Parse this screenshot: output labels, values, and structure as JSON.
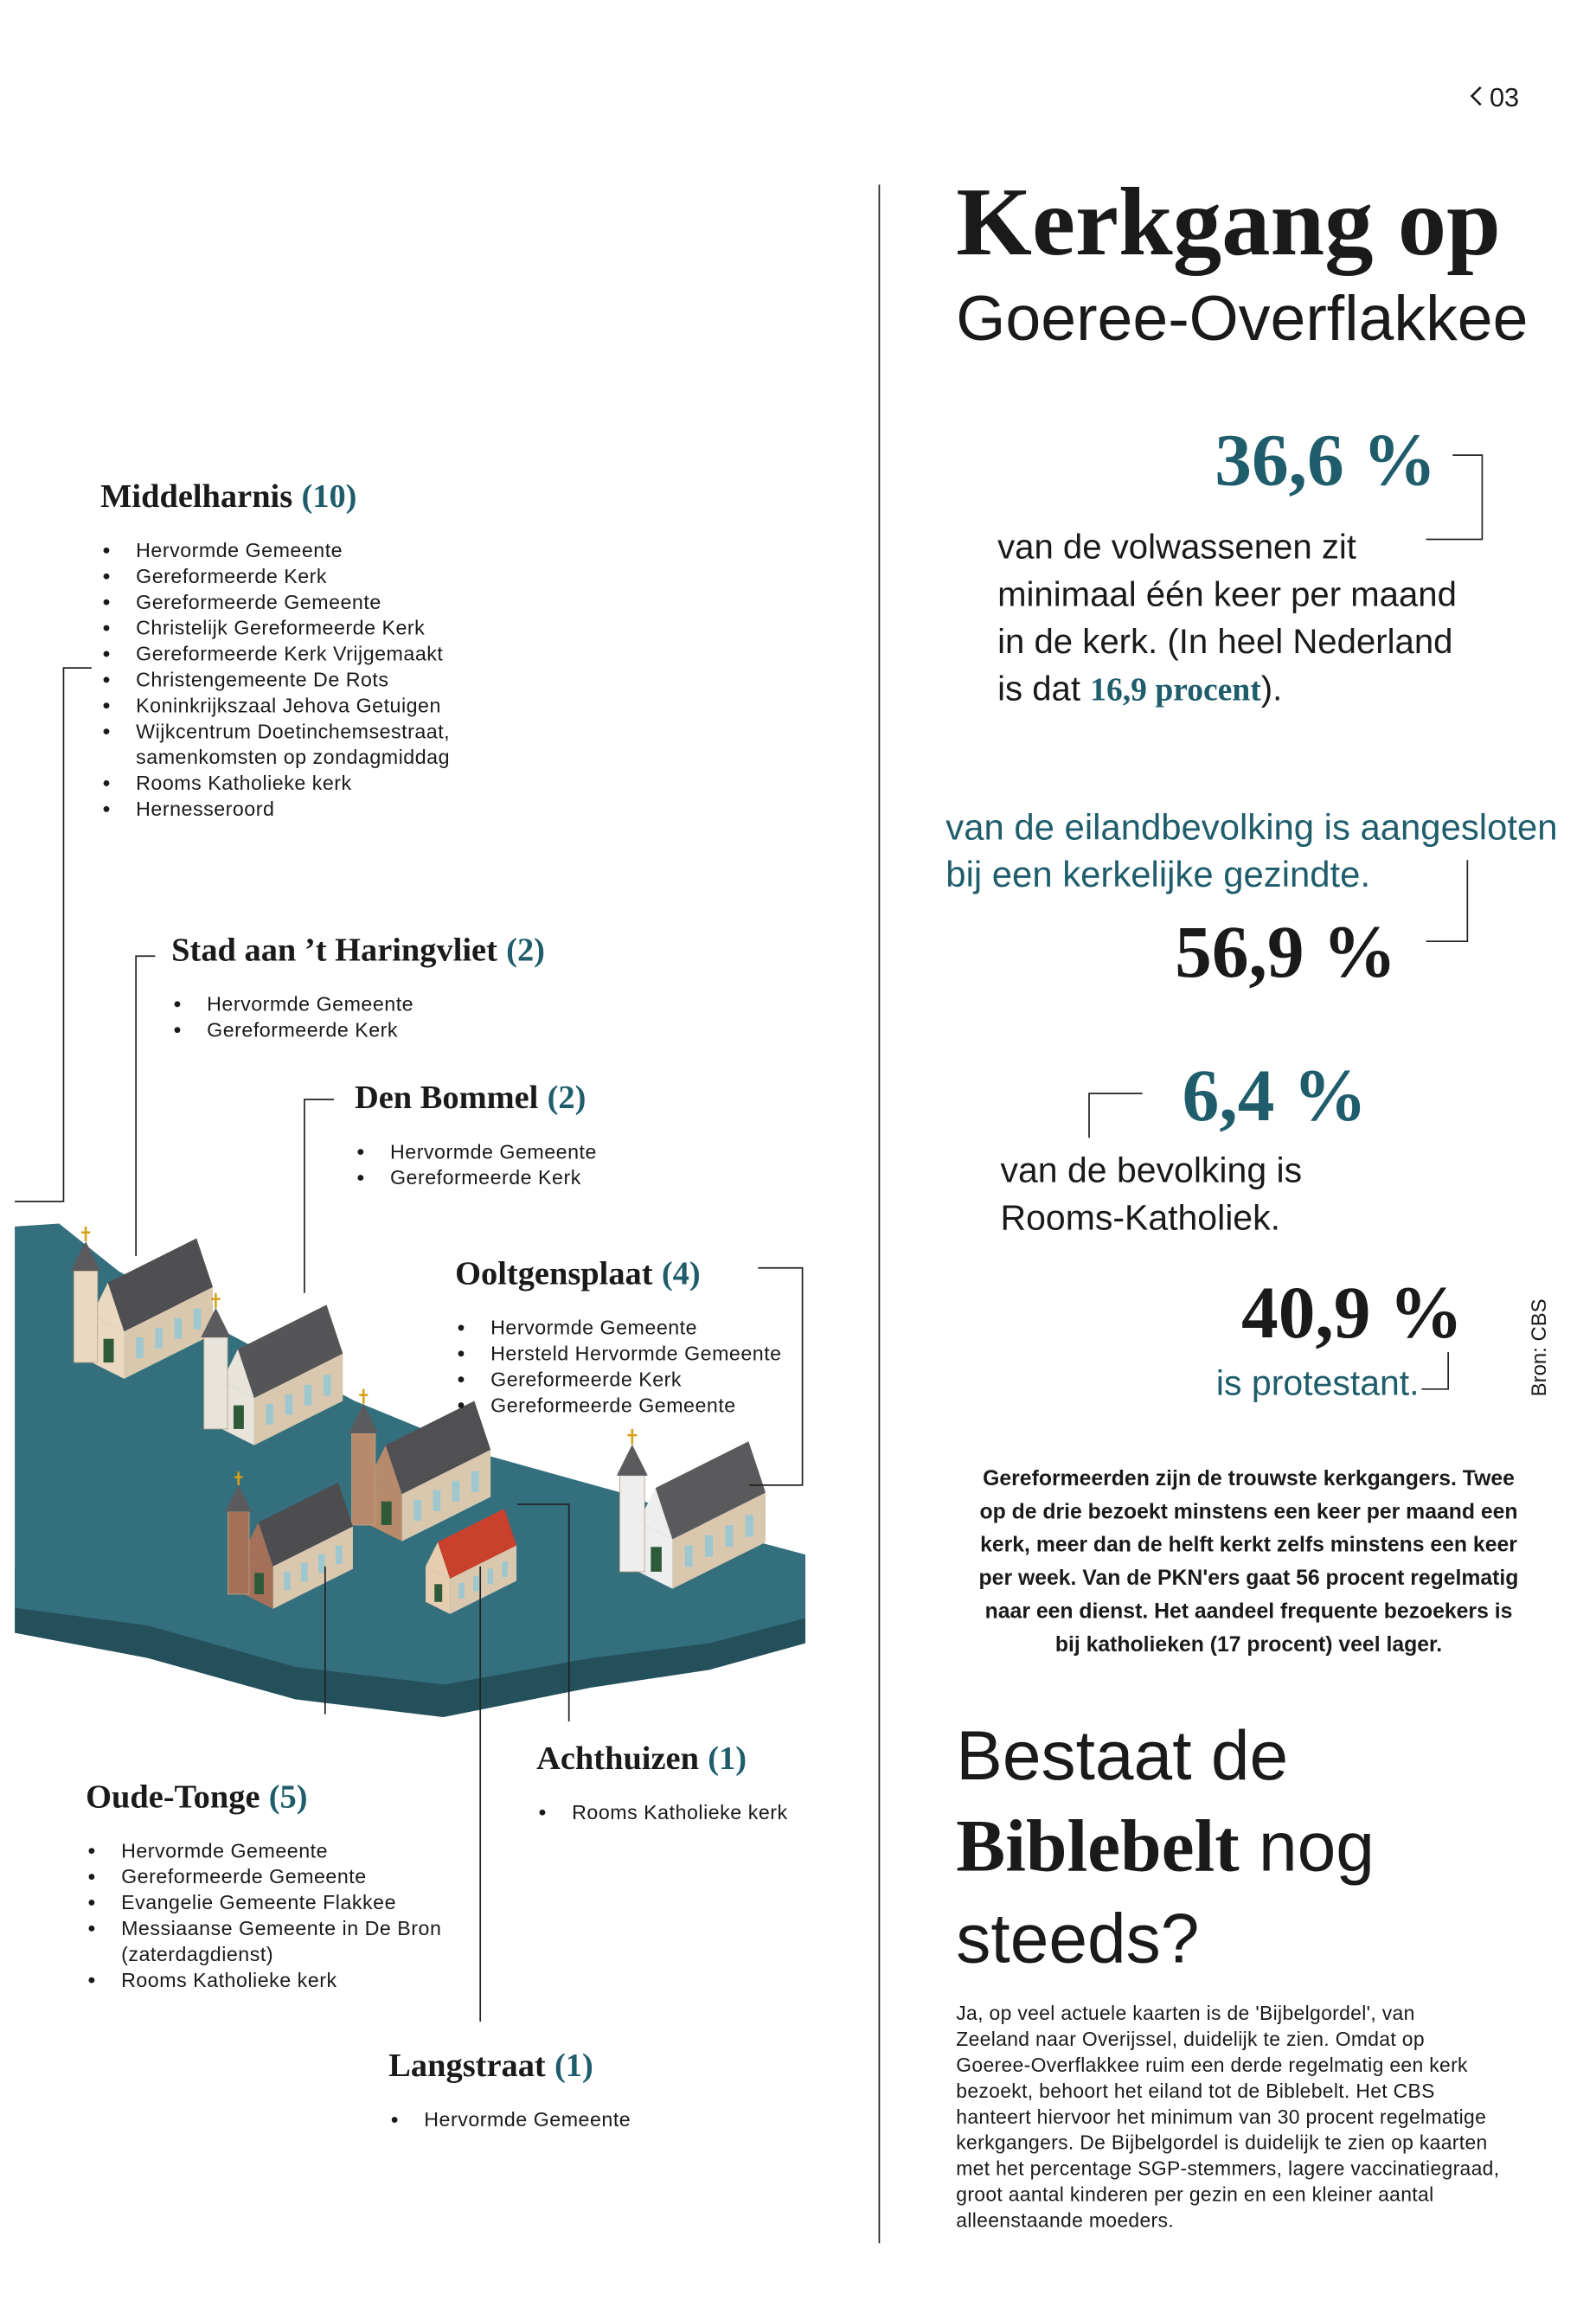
{
  "header": {
    "page_number": "03"
  },
  "title": {
    "line1": "Kerkgang op",
    "line2": "Goeree-Overflakkee"
  },
  "stats": [
    {
      "value": "36,6 %",
      "text_lines": [
        "van de volwassenen zit",
        "minimaal één keer per maand",
        "in de kerk. (In heel Nederland",
        "is dat "
      ],
      "highlight": "16,9 procent",
      "text_end": ")."
    },
    {
      "value": "56,9 %",
      "text_lines": [
        "van de eilandbevolking is aangesloten",
        "bij een kerkelijke gezindte."
      ]
    },
    {
      "value": "6,4 %",
      "text_lines": [
        "van de bevolking is",
        "Rooms-Katholiek."
      ]
    },
    {
      "value": "40,9 %",
      "text_lines": [
        "is protestant."
      ]
    }
  ],
  "source": "Bron: CBS",
  "summary_lines": [
    "Gereformeerden zijn de trouwste kerkgangers. Twee",
    "op de drie bezoekt minstens een keer per maand een",
    "kerk, meer dan de helft kerkt zelfs minstens een keer",
    "per week. Van de PKN'ers gaat 56 procent regelmatig",
    "naar een dienst. Het aandeel frequente bezoekers is",
    "bij katholieken (17 procent) veel lager."
  ],
  "section": {
    "heading_line1": "Bestaat de",
    "heading_bold": "Biblebelt",
    "heading_line2_rest": " nog",
    "heading_line3": "steeds?",
    "body_lines": [
      "Ja, op veel actuele kaarten is de 'Bijbelgordel', van",
      "Zeeland naar Overijssel, duidelijk te zien. Omdat op",
      "Goeree-Overflakkee ruim een derde regelmatig een kerk",
      "bezoekt, behoort het eiland tot de Biblebelt. Het CBS",
      "hanteert hiervoor het minimum van 30 procent regelmatige",
      "kerkgangers. De Bijbelgordel is duidelijk te zien op kaarten",
      "met het percentage SGP-stemmers, lagere vaccinatiegraad,",
      "groot aantal kinderen per gezin en een kleiner aantal",
      "alleenstaande moeders."
    ]
  },
  "places": [
    {
      "name": "Middelharnis",
      "count": "(10)",
      "items": [
        [
          "Hervormde Gemeente"
        ],
        [
          "Gereformeerde Kerk"
        ],
        [
          "Gereformeerde Gemeente"
        ],
        [
          "Christelijk Gereformeerde Kerk"
        ],
        [
          "Gereformeerde Kerk Vrijgemaakt"
        ],
        [
          "Christengemeente De Rots"
        ],
        [
          "Koninkrijkszaal Jehova Getuigen"
        ],
        [
          "Wijkcentrum Doetinchemsestraat,",
          "samenkomsten op zondagmiddag"
        ],
        [
          "Rooms Katholieke kerk"
        ],
        [
          "Hernesseroord"
        ]
      ]
    },
    {
      "name": "Stad aan ’t Haringvliet",
      "count": "(2)",
      "items": [
        [
          "Hervormde Gemeente"
        ],
        [
          "Gereformeerde Kerk"
        ]
      ]
    },
    {
      "name": "Den Bommel",
      "count": "(2)",
      "items": [
        [
          "Hervormde Gemeente"
        ],
        [
          "Gereformeerde Kerk"
        ]
      ]
    },
    {
      "name": "Ooltgensplaat",
      "count": "(4)",
      "items": [
        [
          "Hervormde Gemeente"
        ],
        [
          "Hersteld Hervormde Gemeente"
        ],
        [
          "Gereformeerde Kerk"
        ],
        [
          "Gereformeerde Gemeente"
        ]
      ]
    },
    {
      "name": "Oude-Tonge",
      "count": "(5)",
      "items": [
        [
          "Hervormde Gemeente"
        ],
        [
          "Gereformeerde Gemeente"
        ],
        [
          "Evangelie Gemeente Flakkee"
        ],
        [
          "Messiaanse Gemeente in De Bron",
          "(zaterdagdienst)"
        ],
        [
          "Rooms Katholieke kerk"
        ]
      ]
    },
    {
      "name": "Achthuizen",
      "count": "(1)",
      "items": [
        [
          "Rooms Katholieke kerk"
        ]
      ]
    },
    {
      "name": "Langstraat",
      "count": "(1)",
      "items": [
        [
          "Hervormde Gemeente"
        ]
      ]
    }
  ]
}
